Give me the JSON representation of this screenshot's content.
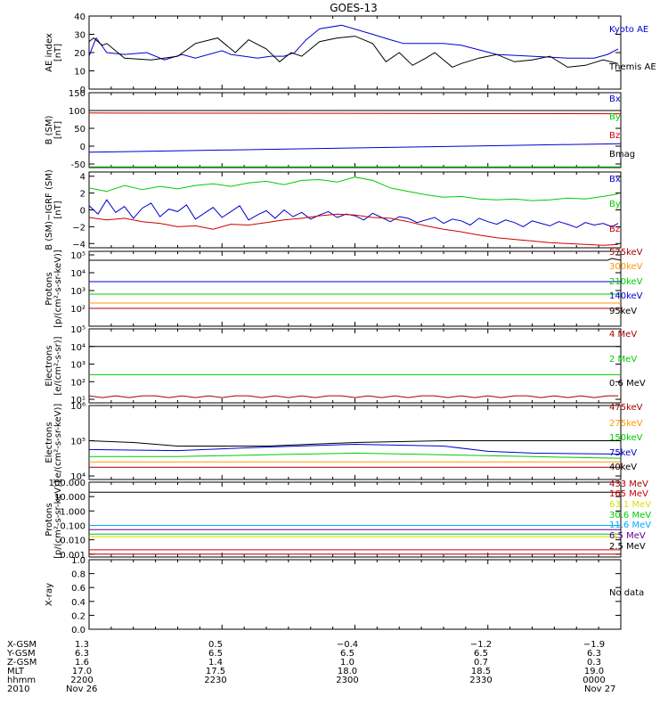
{
  "title": "GOES-13",
  "colors": {
    "black": "#000000",
    "blue": "#0000cc",
    "green": "#00cc00",
    "red": "#cc0000",
    "darkred": "#aa0000",
    "orange": "#ff9900",
    "yellow": "#dddd00",
    "cyan": "#00aaff",
    "purple": "#660099"
  },
  "chart_data": [
    {
      "type": "line",
      "panel": "ae",
      "ylabel": [
        "AE index",
        "[nT]"
      ],
      "ylim": [
        0,
        40
      ],
      "yticks": [
        {
          "v": 0,
          "t": "0"
        },
        {
          "v": 10,
          "t": "10"
        },
        {
          "v": 20,
          "t": "20"
        },
        {
          "v": 30,
          "t": "30"
        },
        {
          "v": 40,
          "t": "40"
        }
      ],
      "series": [
        {
          "name": "Kyoto AE",
          "color": "blue",
          "x": [
            0,
            3,
            8,
            20,
            40,
            65,
            85,
            105,
            120,
            150,
            160,
            175,
            190,
            205,
            220,
            232,
            245,
            260,
            285,
            320,
            340,
            355,
            380,
            400,
            420,
            460,
            500,
            540,
            570,
            585,
            597
          ],
          "y": [
            18,
            22,
            28,
            20,
            19,
            20,
            16,
            19,
            17,
            21,
            19,
            18,
            17,
            18,
            18,
            20,
            27,
            33,
            35,
            30,
            27,
            25,
            25,
            25,
            24,
            19,
            18,
            17,
            17,
            19,
            22
          ]
        },
        {
          "name": "Themis AE",
          "color": "black",
          "x": [
            0,
            5,
            15,
            20,
            40,
            70,
            100,
            120,
            145,
            165,
            180,
            200,
            215,
            228,
            240,
            260,
            280,
            300,
            320,
            335,
            350,
            365,
            380,
            390,
            400,
            410,
            420,
            440,
            460,
            480,
            500,
            520,
            540,
            560,
            580,
            597
          ],
          "y": [
            26,
            28,
            24,
            25,
            17,
            16,
            18,
            25,
            28,
            20,
            27,
            22,
            15,
            20,
            18,
            26,
            28,
            29,
            25,
            15,
            20,
            13,
            17,
            20,
            16,
            12,
            14,
            17,
            19,
            15,
            16,
            18,
            12,
            13,
            16,
            14
          ]
        }
      ]
    },
    {
      "type": "line",
      "panel": "bsm",
      "ylabel": [
        "B (SM)",
        "[nT]"
      ],
      "ylim": [
        -60,
        150
      ],
      "yticks": [
        {
          "v": -50,
          "t": "-50"
        },
        {
          "v": 0,
          "t": "0"
        },
        {
          "v": 50,
          "t": "50"
        },
        {
          "v": 100,
          "t": "100"
        },
        {
          "v": 150,
          "t": "150"
        }
      ],
      "series": [
        {
          "name": "Bx",
          "color": "blue",
          "x": [
            0,
            600
          ],
          "y": [
            -17,
            7
          ]
        },
        {
          "name": "By",
          "color": "green",
          "x": [
            0,
            600
          ],
          "y": [
            -58,
            -58
          ]
        },
        {
          "name": "Bz",
          "color": "red",
          "x": [
            0,
            600
          ],
          "y": [
            93,
            91
          ]
        },
        {
          "name": "Bmag",
          "color": "black",
          "x": [
            0,
            600
          ],
          "y": [
            100,
            100
          ]
        }
      ]
    },
    {
      "type": "line",
      "panel": "bdiff",
      "ylabel": [
        "B (SM)−IGRF (SM)",
        "[nT]"
      ],
      "ylim": [
        -4.5,
        4.5
      ],
      "yticks": [
        {
          "v": -4,
          "t": "−4"
        },
        {
          "v": -2,
          "t": "−2"
        },
        {
          "v": 0,
          "t": "0"
        },
        {
          "v": 2,
          "t": "2"
        },
        {
          "v": 4,
          "t": "4"
        }
      ],
      "series": [
        {
          "name": "Bx",
          "color": "blue",
          "x": [
            0,
            10,
            20,
            30,
            40,
            50,
            60,
            70,
            80,
            90,
            100,
            110,
            120,
            130,
            140,
            150,
            160,
            170,
            180,
            190,
            200,
            210,
            220,
            230,
            240,
            250,
            260,
            270,
            280,
            290,
            300,
            310,
            320,
            330,
            340,
            350,
            360,
            370,
            380,
            390,
            400,
            410,
            420,
            430,
            440,
            450,
            460,
            470,
            480,
            490,
            500,
            510,
            520,
            530,
            540,
            550,
            560,
            570,
            580,
            590,
            597
          ],
          "y": [
            0.5,
            -0.5,
            1.2,
            -0.3,
            0.4,
            -1.0,
            0.2,
            0.8,
            -0.8,
            0.1,
            -0.2,
            0.6,
            -1.1,
            -0.4,
            0.3,
            -0.9,
            -0.2,
            0.5,
            -1.2,
            -0.6,
            -0.1,
            -1.0,
            0,
            -0.8,
            -0.3,
            -1.1,
            -0.6,
            -0.2,
            -0.9,
            -0.5,
            -0.7,
            -1.2,
            -0.4,
            -0.9,
            -1.4,
            -0.8,
            -1.0,
            -1.5,
            -1.2,
            -0.9,
            -1.6,
            -1.1,
            -1.3,
            -1.8,
            -1.0,
            -1.4,
            -1.7,
            -1.2,
            -1.5,
            -2.0,
            -1.3,
            -1.6,
            -1.9,
            -1.4,
            -1.7,
            -2.1,
            -1.5,
            -1.8,
            -1.6,
            -2.0,
            -1.6
          ]
        },
        {
          "name": "By",
          "color": "green",
          "x": [
            0,
            20,
            40,
            60,
            80,
            100,
            120,
            140,
            160,
            180,
            200,
            220,
            240,
            260,
            280,
            300,
            320,
            340,
            360,
            380,
            400,
            420,
            440,
            460,
            480,
            500,
            520,
            540,
            560,
            580,
            597
          ],
          "y": [
            2.6,
            2.2,
            2.9,
            2.4,
            2.8,
            2.5,
            2.9,
            3.1,
            2.8,
            3.2,
            3.4,
            3.0,
            3.5,
            3.6,
            3.3,
            3.9,
            3.5,
            2.6,
            2.2,
            1.8,
            1.5,
            1.6,
            1.3,
            1.2,
            1.3,
            1.1,
            1.2,
            1.4,
            1.3,
            1.6,
            1.9
          ]
        },
        {
          "name": "Bz",
          "color": "red",
          "x": [
            0,
            20,
            40,
            60,
            80,
            100,
            120,
            140,
            160,
            180,
            200,
            220,
            240,
            260,
            280,
            300,
            320,
            340,
            360,
            380,
            400,
            420,
            440,
            460,
            480,
            500,
            520,
            540,
            560,
            580,
            597
          ],
          "y": [
            -0.9,
            -1.2,
            -1.0,
            -1.4,
            -1.6,
            -2.0,
            -1.9,
            -2.3,
            -1.7,
            -1.8,
            -1.5,
            -1.2,
            -1.0,
            -0.7,
            -0.5,
            -0.6,
            -0.9,
            -1.0,
            -1.4,
            -1.9,
            -2.3,
            -2.6,
            -3.0,
            -3.3,
            -3.5,
            -3.7,
            -3.9,
            -4.0,
            -4.1,
            -4.2,
            -4.1
          ]
        }
      ]
    },
    {
      "type": "line",
      "panel": "protons-mageds",
      "log": true,
      "ylabel": [
        "Protons",
        "[p/(cm²-s-sr-keV)]"
      ],
      "ylim": [
        1.0,
        5.2
      ],
      "yticks": [
        {
          "v": 2,
          "t": "10²"
        },
        {
          "v": 3,
          "t": "10³"
        },
        {
          "v": 4,
          "t": "10⁴"
        },
        {
          "v": 5,
          "t": "10⁵"
        }
      ],
      "series": [
        {
          "name": "575keV",
          "color": "darkred",
          "x": [
            0,
            600
          ],
          "y": [
            2.0,
            2.0
          ]
        },
        {
          "name": "300keV",
          "color": "orange",
          "x": [
            0,
            600
          ],
          "y": [
            2.3,
            2.3
          ]
        },
        {
          "name": "210keV",
          "color": "green",
          "x": [
            0,
            600
          ],
          "y": [
            2.8,
            2.8
          ]
        },
        {
          "name": "140keV",
          "color": "blue",
          "x": [
            0,
            600
          ],
          "y": [
            3.5,
            3.5
          ]
        },
        {
          "name": "95keV",
          "color": "black",
          "x": [
            0,
            585,
            590,
            600
          ],
          "y": [
            4.7,
            4.7,
            4.8,
            4.7
          ]
        }
      ]
    },
    {
      "type": "line",
      "panel": "electrons-epead",
      "log": true,
      "ylabel": [
        "Electrons",
        "[e/(cm²-s-sr)]"
      ],
      "ylim": [
        0.8,
        5.0
      ],
      "yticks": [
        {
          "v": 1,
          "t": "10¹"
        },
        {
          "v": 2,
          "t": "10²"
        },
        {
          "v": 3,
          "t": "10³"
        },
        {
          "v": 4,
          "t": "10⁴"
        },
        {
          "v": 5,
          "t": "10⁵"
        }
      ],
      "series": [
        {
          "name": "4 MeV",
          "color": "darkred",
          "x": [
            0,
            15,
            30,
            45,
            60,
            75,
            90,
            105,
            120,
            135,
            150,
            165,
            180,
            195,
            210,
            225,
            240,
            255,
            270,
            285,
            300,
            315,
            330,
            345,
            360,
            375,
            390,
            405,
            420,
            435,
            450,
            465,
            480,
            495,
            510,
            525,
            540,
            555,
            570,
            585,
            597
          ],
          "y": [
            1.2,
            1.1,
            1.2,
            1.1,
            1.2,
            1.2,
            1.1,
            1.2,
            1.1,
            1.2,
            1.1,
            1.2,
            1.2,
            1.1,
            1.2,
            1.1,
            1.2,
            1.1,
            1.2,
            1.2,
            1.1,
            1.2,
            1.1,
            1.2,
            1.1,
            1.2,
            1.2,
            1.1,
            1.2,
            1.1,
            1.2,
            1.1,
            1.2,
            1.2,
            1.1,
            1.2,
            1.1,
            1.2,
            1.1,
            1.2,
            1.2
          ]
        },
        {
          "name": "2 MeV",
          "color": "green",
          "x": [
            0,
            600
          ],
          "y": [
            2.4,
            2.4
          ]
        },
        {
          "name": "0.6 MeV",
          "color": "black",
          "x": [
            0,
            600
          ],
          "y": [
            4.0,
            4.0
          ]
        }
      ]
    },
    {
      "type": "line",
      "panel": "electrons-mageds",
      "log": true,
      "ylabel": [
        "Electrons",
        "[e/(cm²-s-sr-keV)]"
      ],
      "ylim": [
        3.9,
        6.0
      ],
      "yticks": [
        {
          "v": 4,
          "t": "10⁴"
        },
        {
          "v": 5,
          "t": "10⁵"
        },
        {
          "v": 6,
          "t": "10⁶"
        }
      ],
      "series": [
        {
          "name": "475keV",
          "color": "darkred",
          "x": [
            0,
            600
          ],
          "y": [
            4.25,
            4.25
          ]
        },
        {
          "name": "275keV",
          "color": "orange",
          "x": [
            0,
            600
          ],
          "y": [
            4.4,
            4.4
          ]
        },
        {
          "name": "150keV",
          "color": "green",
          "x": [
            0,
            100,
            200,
            300,
            400,
            500,
            600
          ],
          "y": [
            4.55,
            4.55,
            4.6,
            4.65,
            4.6,
            4.55,
            4.5
          ]
        },
        {
          "name": "75keV",
          "color": "blue",
          "x": [
            0,
            100,
            200,
            300,
            400,
            450,
            500,
            600
          ],
          "y": [
            4.75,
            4.72,
            4.82,
            4.9,
            4.85,
            4.7,
            4.65,
            4.62
          ]
        },
        {
          "name": "40keV",
          "color": "black",
          "x": [
            0,
            50,
            100,
            200,
            300,
            400,
            500,
            600
          ],
          "y": [
            5.0,
            4.95,
            4.85,
            4.85,
            4.95,
            5.0,
            5.0,
            5.0
          ]
        }
      ]
    },
    {
      "type": "line",
      "panel": "protons-epead",
      "log": true,
      "ylabel": [
        "Protons",
        "[p/(cm²-s-sr-keV)]"
      ],
      "ylim": [
        -3.2,
        2.0
      ],
      "yticks": [
        {
          "v": -3,
          "t": "0.001"
        },
        {
          "v": -2,
          "t": "0.010"
        },
        {
          "v": -1,
          "t": "0.100"
        },
        {
          "v": 0,
          "t": "1.000"
        },
        {
          "v": 1,
          "t": "10.000"
        },
        {
          "v": 2,
          "t": "100.000"
        }
      ],
      "series": [
        {
          "name": "433 MeV",
          "color": "darkred",
          "x": [
            0,
            600
          ],
          "y": [
            -3.0,
            -3.0
          ]
        },
        {
          "name": "165 MeV",
          "color": "red",
          "x": [
            0,
            600
          ],
          "y": [
            -2.7,
            -2.7
          ]
        },
        {
          "name": "63.1 MeV",
          "color": "yellow",
          "x": [
            0,
            600
          ],
          "y": [
            -1.8,
            -1.8
          ]
        },
        {
          "name": "30.6 MeV",
          "color": "green",
          "x": [
            0,
            600
          ],
          "y": [
            -1.6,
            -1.6
          ]
        },
        {
          "name": "11.6 MeV",
          "color": "cyan",
          "x": [
            0,
            600
          ],
          "y": [
            -1.0,
            -1.0
          ]
        },
        {
          "name": "6.5 MeV",
          "color": "purple",
          "x": [
            0,
            600
          ],
          "y": [
            -1.3,
            -1.3
          ]
        },
        {
          "name": "2.5 MeV",
          "color": "black",
          "x": [
            0,
            600
          ],
          "y": [
            1.3,
            1.3
          ]
        }
      ]
    },
    {
      "type": "line",
      "panel": "xray",
      "ylabel": [
        "X-ray",
        ""
      ],
      "ylim": [
        0,
        1.0
      ],
      "yticks": [
        {
          "v": 0,
          "t": "0.0"
        },
        {
          "v": 0.2,
          "t": "0.2"
        },
        {
          "v": 0.4,
          "t": "0.4"
        },
        {
          "v": 0.6,
          "t": "0.6"
        },
        {
          "v": 0.8,
          "t": "0.8"
        },
        {
          "v": 1.0,
          "t": "1.0"
        }
      ],
      "series": [],
      "nodata": "No data"
    }
  ],
  "legends": [
    [
      "Kyoto AE",
      "Themis AE"
    ],
    [
      "Bx",
      "By",
      "Bz",
      "Bmag"
    ],
    [
      "Bx",
      "By",
      "Bz"
    ],
    [
      "575keV",
      "300keV",
      "210keV",
      "140keV",
      "95keV"
    ],
    [
      "4 MeV",
      "2 MeV",
      "0.6 MeV"
    ],
    [
      "475keV",
      "275keV",
      "150keV",
      "75keV",
      "40keV"
    ],
    [
      "433 MeV",
      "165 MeV",
      "63.1 MeV",
      "30.6 MeV",
      "11.6 MeV",
      "6.5 MeV",
      "2.5 MeV"
    ],
    [
      "No data"
    ]
  ],
  "footer": {
    "labels": [
      "X-GSM",
      "Y-GSM",
      "Z-GSM",
      "MLT",
      "hhmm",
      "2010"
    ],
    "columns": [
      [
        "1.3",
        "6.3",
        "1.6",
        "17.0",
        "2200",
        "Nov 26"
      ],
      [
        "0.5",
        "6.5",
        "1.4",
        "17.5",
        "2230",
        ""
      ],
      [
        "−0.4",
        "6.5",
        "1.0",
        "18.0",
        "2300",
        ""
      ],
      [
        "−1.2",
        "6.5",
        "0.7",
        "18.5",
        "2330",
        ""
      ],
      [
        "−1.9",
        "6.3",
        "0.3",
        "19.0",
        "0000",
        "Nov 27"
      ]
    ]
  }
}
